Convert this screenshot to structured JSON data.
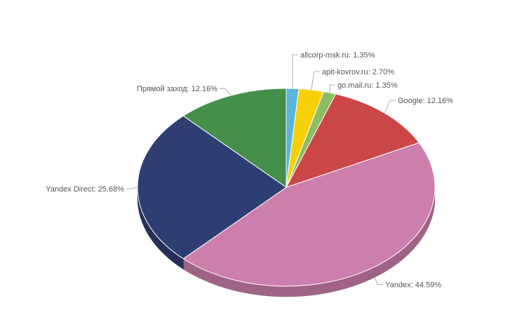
{
  "chart_data": {
    "type": "pie",
    "title": "",
    "legend": "none",
    "data_label_separator": ": ",
    "slices": [
      {
        "name": "allcorp-msk.ru",
        "value": 1.35,
        "label": "1.35%",
        "color": "#5ab4dc"
      },
      {
        "name": "apit-kovrov.ru",
        "value": 2.7,
        "label": "2.70%",
        "color": "#f8d007"
      },
      {
        "name": "go.mail.ru",
        "value": 1.35,
        "label": "1.35%",
        "color": "#8cbd62"
      },
      {
        "name": "Google",
        "value": 12.16,
        "label": "12.16%",
        "color": "#cb4646"
      },
      {
        "name": "Yandex",
        "value": 44.59,
        "label": "44.59%",
        "color": "#cc7fac"
      },
      {
        "name": "Yandex Direct",
        "value": 25.68,
        "label": "25.68%",
        "color": "#2f3e72"
      },
      {
        "name": "Прямой заход",
        "value": 12.16,
        "label": "12.16%",
        "color": "#448f4a"
      }
    ]
  }
}
